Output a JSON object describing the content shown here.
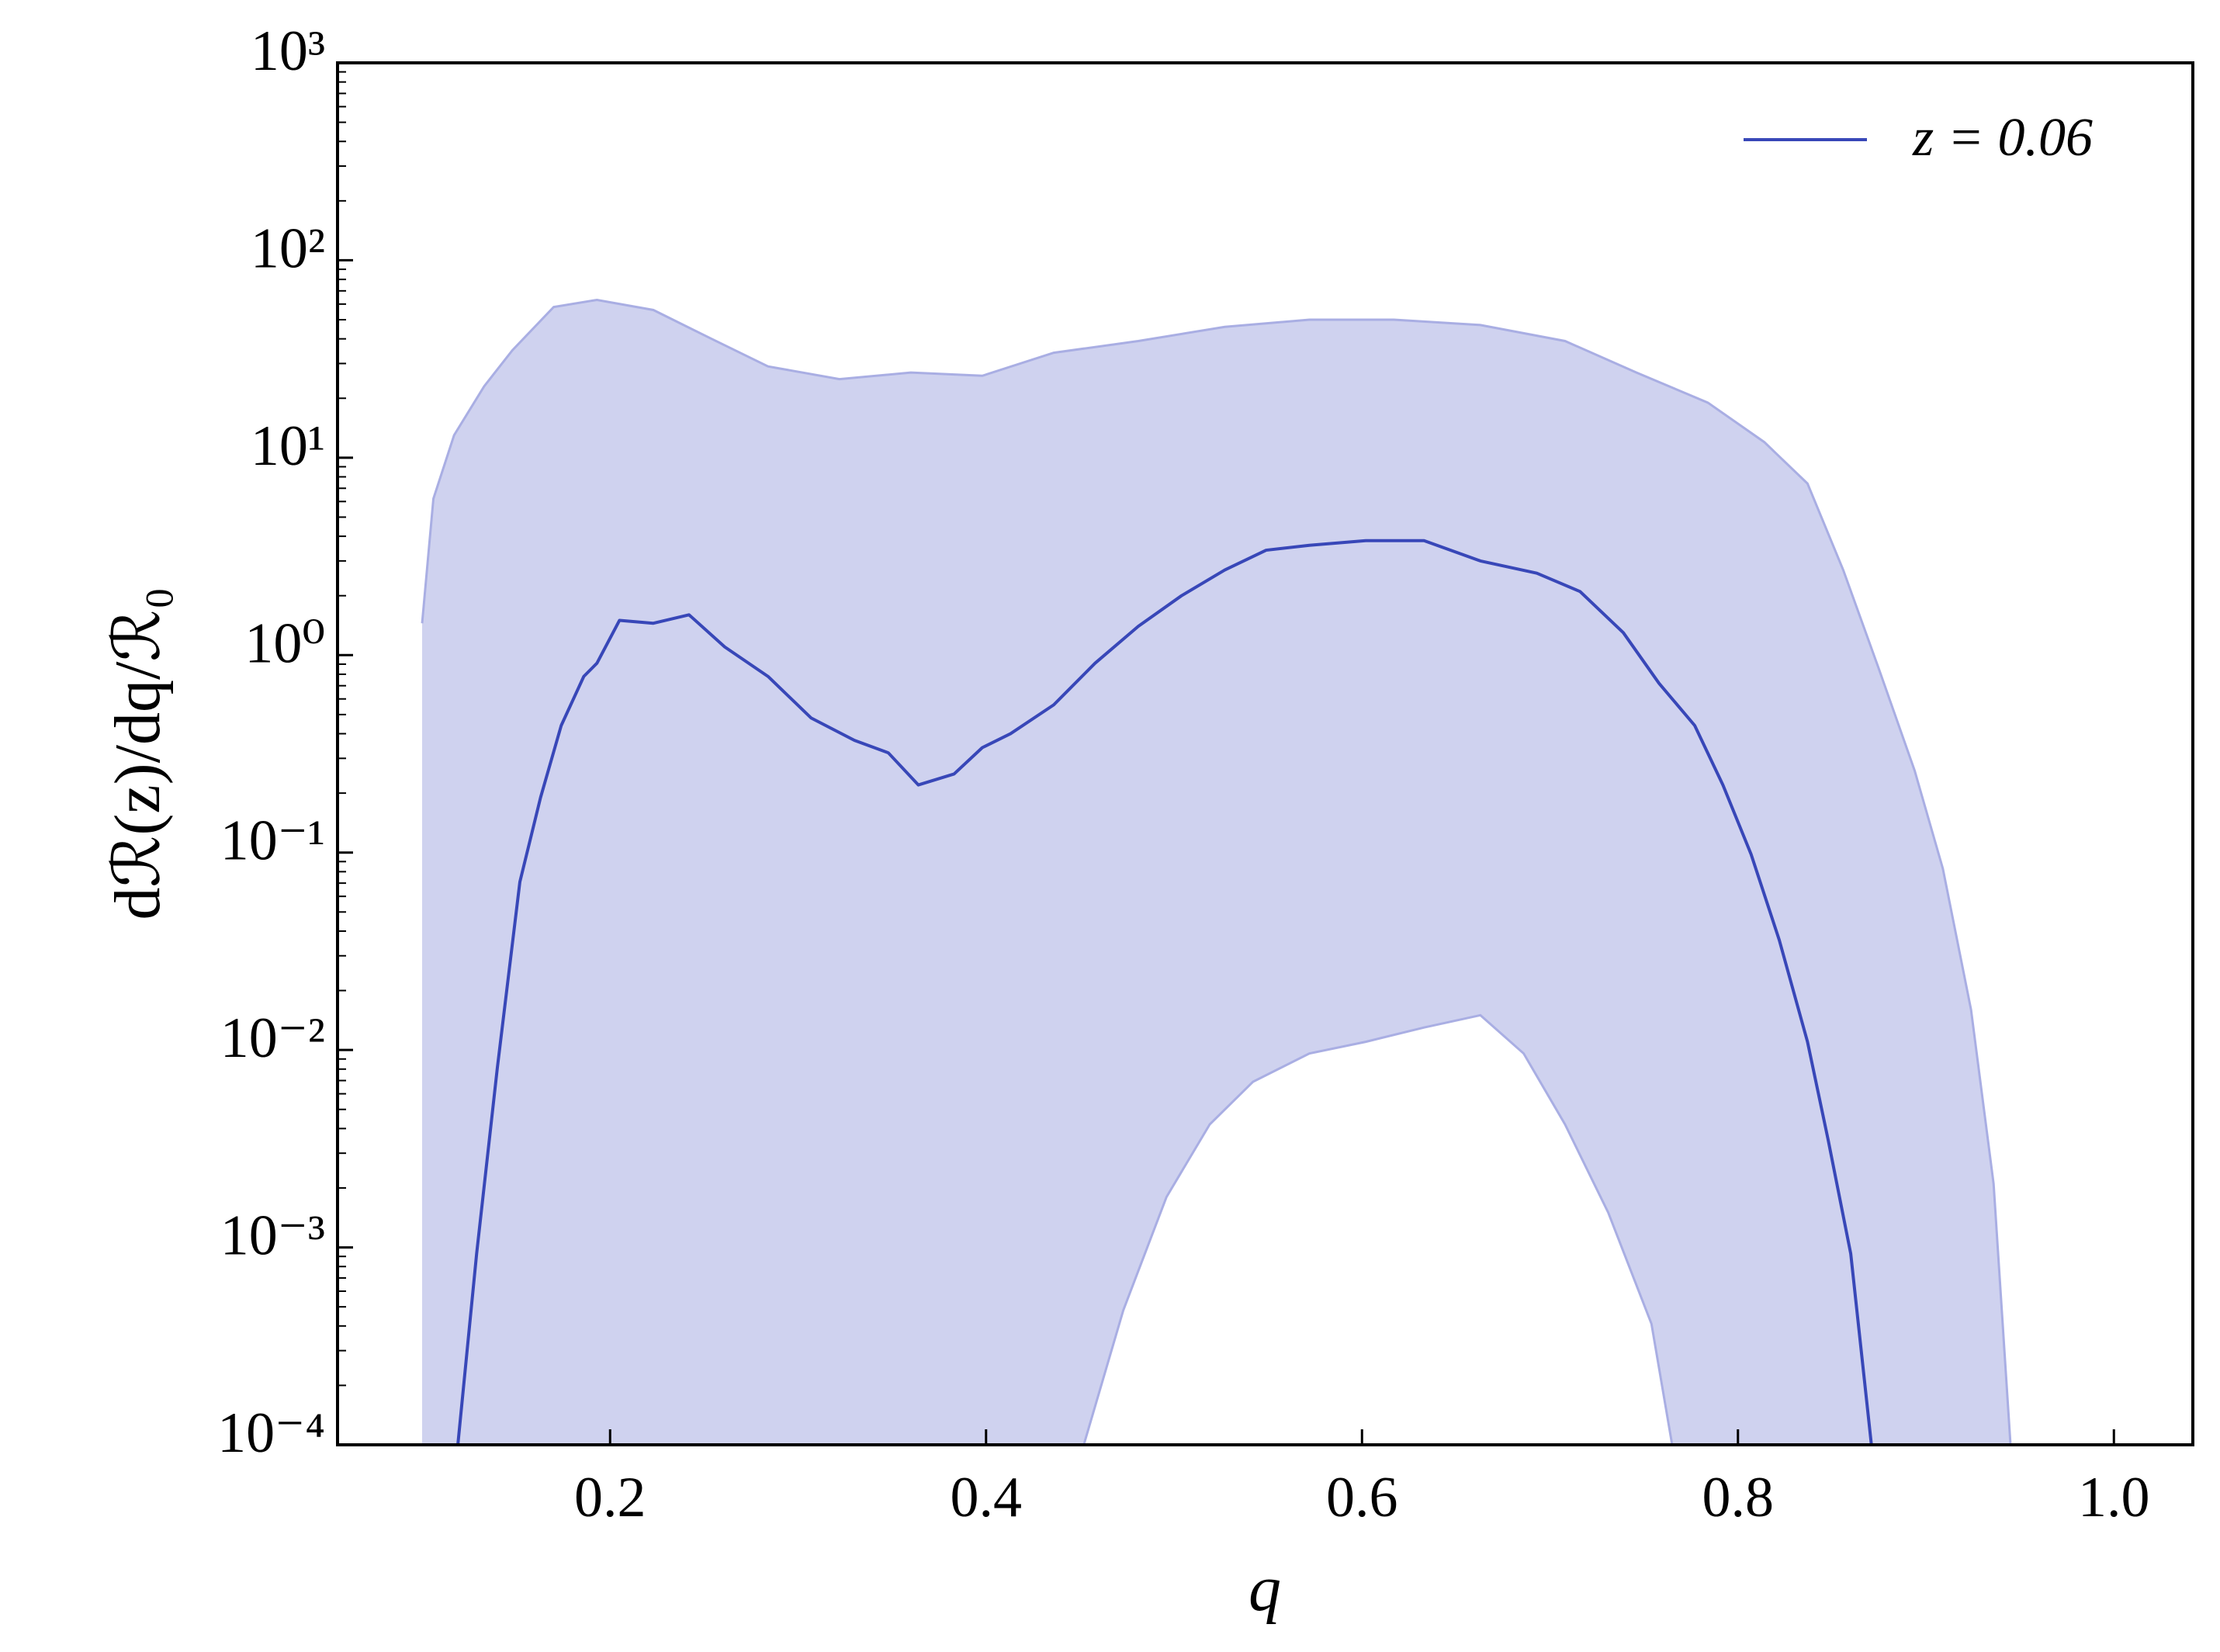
{
  "chart_data": {
    "type": "line",
    "x_label": "q",
    "y_label": "dℛ(z)/dq/ℛ₀",
    "xlim": [
      0.055,
      1.042
    ],
    "xticks": [
      0.2,
      0.4,
      0.6,
      0.8,
      {
        "value": 1.0,
        "label": "1.0"
      }
    ],
    "ylim": [
      0.0001,
      1000
    ],
    "yticks": [
      {
        "value": 0.0001,
        "label": "10⁻⁴"
      },
      {
        "value": 0.001,
        "label": "10⁻³"
      },
      {
        "value": 0.01,
        "label": "10⁻²"
      },
      {
        "value": 0.1,
        "label": "10⁻¹"
      },
      {
        "value": 1,
        "label": "10⁰"
      },
      {
        "value": 10,
        "label": "10¹"
      },
      {
        "value": 100,
        "label": "10²"
      },
      {
        "value": 1000,
        "label": "10³"
      }
    ],
    "log_y": true,
    "legend": "upper right",
    "series": [
      {
        "name": "z = 0.06",
        "color": "#3847b8",
        "x": [
          0.119,
          0.129,
          0.14,
          0.152,
          0.163,
          0.174,
          0.186,
          0.193,
          0.205,
          0.223,
          0.242,
          0.261,
          0.284,
          0.307,
          0.33,
          0.348,
          0.364,
          0.383,
          0.398,
          0.413,
          0.436,
          0.458,
          0.481,
          0.504,
          0.527,
          0.549,
          0.572,
          0.602,
          0.633,
          0.663,
          0.693,
          0.716,
          0.739,
          0.758,
          0.777,
          0.792,
          0.807,
          0.822,
          0.837,
          0.848,
          0.86,
          0.871
        ],
        "values": [
          0.0001,
          0.00093,
          0.0081,
          0.071,
          0.19,
          0.44,
          0.78,
          0.91,
          1.5,
          1.45,
          1.6,
          1.1,
          0.78,
          0.48,
          0.37,
          0.32,
          0.22,
          0.25,
          0.34,
          0.4,
          0.56,
          0.91,
          1.4,
          2.0,
          2.7,
          3.4,
          3.6,
          3.8,
          3.8,
          3.0,
          2.6,
          2.1,
          1.3,
          0.72,
          0.44,
          0.22,
          0.098,
          0.036,
          0.011,
          0.0035,
          0.00093,
          0.0001
        ]
      }
    ],
    "band": {
      "color": "#cfd2ef",
      "edge_color": "#a9aee3",
      "upper": {
        "x": [
          0.1,
          0.106,
          0.117,
          0.133,
          0.148,
          0.17,
          0.193,
          0.223,
          0.254,
          0.284,
          0.322,
          0.36,
          0.398,
          0.436,
          0.481,
          0.527,
          0.572,
          0.617,
          0.663,
          0.708,
          0.746,
          0.784,
          0.814,
          0.837,
          0.856,
          0.875,
          0.894,
          0.909,
          0.924,
          0.936,
          0.945
        ],
        "values": [
          1.45,
          6.2,
          13,
          23,
          35,
          58,
          63,
          56,
          40,
          29,
          25,
          27,
          26,
          34,
          39,
          46,
          50,
          50,
          47,
          39,
          27,
          19,
          12,
          7.4,
          2.7,
          0.85,
          0.26,
          0.083,
          0.016,
          0.0021,
          0.0001
        ]
      },
      "lower": {
        "x": [
          0.452,
          0.473,
          0.496,
          0.519,
          0.542,
          0.572,
          0.602,
          0.633,
          0.663,
          0.686,
          0.708,
          0.731,
          0.754,
          0.765
        ],
        "values": [
          0.0001,
          0.00048,
          0.0018,
          0.0042,
          0.0069,
          0.0096,
          0.011,
          0.013,
          0.015,
          0.0096,
          0.0042,
          0.0015,
          0.00041,
          0.0001
        ]
      }
    }
  }
}
